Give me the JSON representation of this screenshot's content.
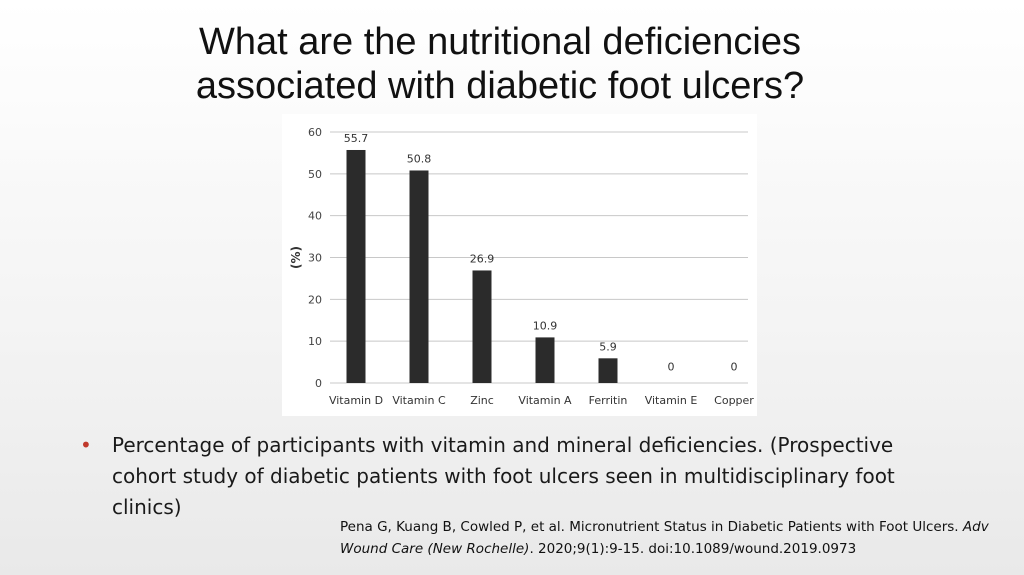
{
  "slide": {
    "title_line1": "What are the nutritional deficiencies",
    "title_line2": "associated with diabetic foot ulcers?",
    "bullet_text": "Percentage of participants with vitamin and mineral deficiencies. (Prospective cohort study of diabetic patients with foot ulcers seen in multidisciplinary foot clinics)",
    "bullet_color": "#c0392b",
    "citation": {
      "main": "Pena G, Kuang B, Cowled P, et al. Micronutrient Status in Diabetic Patients with Foot Ulcers.",
      "journal": "Adv Wound Care (New Rochelle)",
      "rest": ". 2020;9(1):9-15. doi:10.1089/wound.2019.0973"
    }
  },
  "chart_data": {
    "type": "bar",
    "categories": [
      "Vitamin D",
      "Vitamin C",
      "Zinc",
      "Vitamin A",
      "Ferritin",
      "Vitamin E",
      "Copper"
    ],
    "values": [
      55.7,
      50.8,
      26.9,
      10.9,
      5.9,
      0,
      0
    ],
    "data_labels": [
      "55.7",
      "50.8",
      "26.9",
      "10.9",
      "5.9",
      "0",
      "0"
    ],
    "ylabel": "(%)",
    "ylim": [
      0,
      60
    ],
    "yticks": [
      0,
      10,
      20,
      30,
      40,
      50,
      60
    ],
    "grid": true,
    "bar_color": "#2b2b2b",
    "grid_color": "#c8c8c8"
  }
}
